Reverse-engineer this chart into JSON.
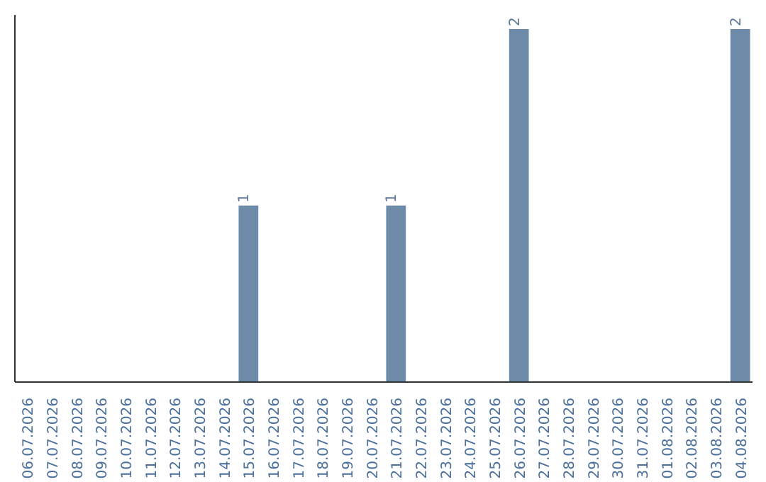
{
  "chart_data": {
    "type": "bar",
    "categories": [
      "06.07.2026",
      "07.07.2026",
      "08.07.2026",
      "09.07.2026",
      "10.07.2026",
      "11.07.2026",
      "12.07.2026",
      "13.07.2026",
      "14.07.2026",
      "15.07.2026",
      "16.07.2026",
      "17.07.2026",
      "18.07.2026",
      "19.07.2026",
      "20.07.2026",
      "21.07.2026",
      "22.07.2026",
      "23.07.2026",
      "24.07.2026",
      "25.07.2026",
      "26.07.2026",
      "27.07.2026",
      "28.07.2026",
      "29.07.2026",
      "30.07.2026",
      "31.07.2026",
      "01.08.2026",
      "02.08.2026",
      "03.08.2026",
      "04.08.2026"
    ],
    "values": [
      0,
      0,
      0,
      0,
      0,
      0,
      0,
      0,
      0,
      1,
      0,
      0,
      0,
      0,
      0,
      1,
      0,
      0,
      0,
      0,
      2,
      0,
      0,
      0,
      0,
      0,
      0,
      0,
      0,
      2
    ],
    "value_labels": [
      null,
      null,
      null,
      null,
      null,
      null,
      null,
      null,
      null,
      "1",
      null,
      null,
      null,
      null,
      null,
      "1",
      null,
      null,
      null,
      null,
      "2",
      null,
      null,
      null,
      null,
      null,
      null,
      null,
      null,
      "2"
    ],
    "color": "#6d8aa8",
    "grid": false,
    "tick_labels": "x"
  }
}
